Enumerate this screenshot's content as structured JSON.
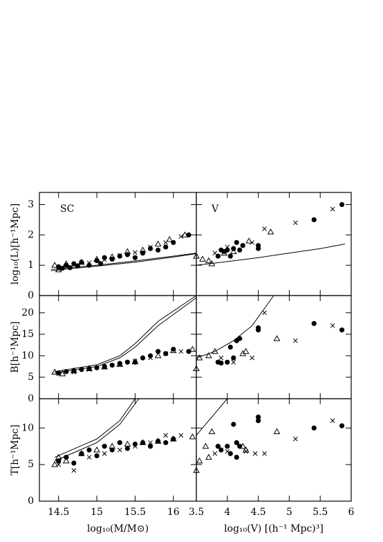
{
  "chart_data": [
    {
      "type": "scatter",
      "annotation": "SC",
      "ylabel": "log₁₀(L)[h⁻¹Mpc]",
      "xlim": [
        14.25,
        16.3
      ],
      "ylim": [
        0,
        3.4
      ],
      "yticks": [
        0,
        1,
        2,
        3
      ],
      "series": [
        {
          "marker": "line",
          "color": "#000",
          "x": [
            14.4,
            15.0,
            15.5,
            16.0,
            16.3
          ],
          "values": [
            0.82,
            0.97,
            1.1,
            1.27,
            1.38
          ]
        },
        {
          "marker": "line",
          "color": "#000",
          "x": [
            14.4,
            15.0,
            15.5,
            16.0,
            16.3
          ],
          "values": [
            0.86,
            1.0,
            1.14,
            1.3,
            1.4
          ]
        },
        {
          "marker": "circle",
          "color": "#000",
          "x": [
            14.5,
            14.55,
            14.6,
            14.65,
            14.7,
            14.75,
            14.8,
            14.9,
            15.0,
            15.05,
            15.1,
            15.2,
            15.3,
            15.4,
            15.5,
            15.6,
            15.7,
            15.8,
            15.9,
            16.0,
            16.2
          ],
          "values": [
            0.95,
            0.9,
            1.0,
            0.92,
            1.05,
            0.98,
            1.1,
            1.0,
            1.15,
            1.05,
            1.25,
            1.2,
            1.3,
            1.35,
            1.25,
            1.4,
            1.55,
            1.5,
            1.6,
            1.75,
            2.0
          ]
        },
        {
          "marker": "cross",
          "color": "#000",
          "x": [
            14.5,
            14.7,
            14.9,
            15.1,
            15.3,
            15.5,
            15.7,
            15.9,
            16.1
          ],
          "values": [
            0.88,
            1.02,
            1.08,
            1.18,
            1.32,
            1.42,
            1.6,
            1.75,
            1.95
          ]
        },
        {
          "marker": "triangle",
          "color": "#000",
          "x": [
            14.45,
            14.5,
            14.6,
            14.8,
            15.0,
            15.2,
            15.4,
            15.6,
            15.8,
            15.95,
            16.15
          ],
          "values": [
            1.0,
            0.85,
            1.05,
            1.1,
            1.2,
            1.28,
            1.45,
            1.5,
            1.7,
            1.85,
            2.0
          ]
        }
      ]
    },
    {
      "type": "scatter",
      "annotation": "V",
      "xlim": [
        3.5,
        6
      ],
      "ylim": [
        0,
        3.4
      ],
      "series": [
        {
          "marker": "line",
          "color": "#000",
          "x": [
            3.5,
            4.0,
            4.5,
            5.0,
            5.5,
            5.9
          ],
          "values": [
            1.0,
            1.12,
            1.25,
            1.4,
            1.55,
            1.7
          ]
        },
        {
          "marker": "circle",
          "color": "#000",
          "x": [
            3.85,
            3.9,
            3.95,
            4.0,
            4.05,
            4.1,
            4.15,
            4.2,
            4.25,
            4.5,
            4.5,
            5.4,
            5.85
          ],
          "values": [
            1.3,
            1.5,
            1.45,
            1.5,
            1.3,
            1.55,
            1.75,
            1.5,
            1.65,
            1.65,
            1.55,
            2.5,
            3.0
          ]
        },
        {
          "marker": "cross",
          "color": "#000",
          "x": [
            3.8,
            4.0,
            4.4,
            4.6,
            5.1,
            5.7
          ],
          "values": [
            1.4,
            1.6,
            1.75,
            2.2,
            2.4,
            2.85
          ]
        },
        {
          "marker": "triangle",
          "color": "#000",
          "x": [
            3.5,
            3.6,
            3.7,
            3.75,
            3.95,
            4.1,
            4.35,
            4.7
          ],
          "values": [
            1.3,
            1.2,
            1.15,
            1.05,
            1.4,
            1.45,
            1.8,
            2.1
          ]
        }
      ]
    },
    {
      "type": "scatter",
      "ylabel": "B[h⁻¹Mpc]",
      "xlim": [
        14.25,
        16.3
      ],
      "ylim": [
        0,
        24
      ],
      "yticks": [
        0,
        5,
        10,
        15,
        20
      ],
      "series": [
        {
          "marker": "line",
          "color": "#000",
          "x": [
            14.45,
            15.0,
            15.3,
            15.5,
            15.8,
            16.3
          ],
          "values": [
            6,
            7.5,
            9.5,
            12,
            17,
            23.5
          ]
        },
        {
          "marker": "line",
          "color": "#000",
          "x": [
            14.45,
            15.0,
            15.3,
            15.5,
            15.8,
            16.3
          ],
          "values": [
            6.3,
            7.9,
            10,
            12.8,
            18,
            24
          ]
        },
        {
          "marker": "circle",
          "color": "#000",
          "x": [
            14.5,
            14.6,
            14.7,
            14.8,
            14.9,
            15.0,
            15.1,
            15.2,
            15.3,
            15.4,
            15.5,
            15.6,
            15.7,
            15.8,
            15.9,
            16.0,
            16.2
          ],
          "values": [
            6,
            6.3,
            6.5,
            6.8,
            7,
            7.2,
            7.5,
            7.8,
            8.2,
            8.5,
            8.5,
            9.5,
            10,
            11,
            10.5,
            11.5,
            11
          ]
        },
        {
          "marker": "cross",
          "color": "#000",
          "x": [
            14.5,
            14.7,
            14.9,
            15.1,
            15.3,
            15.5,
            15.7,
            15.9,
            16.1
          ],
          "values": [
            5.8,
            6.2,
            6.8,
            7.3,
            8,
            8.8,
            9.5,
            10.5,
            11
          ]
        },
        {
          "marker": "triangle",
          "color": "#000",
          "x": [
            14.45,
            14.55,
            14.7,
            14.9,
            15.1,
            15.3,
            15.5,
            15.8,
            16.0,
            16.25
          ],
          "values": [
            6.2,
            5.8,
            6.5,
            7,
            7.4,
            8,
            8.6,
            10,
            11.2,
            11.5
          ]
        }
      ]
    },
    {
      "type": "scatter",
      "xlim": [
        3.5,
        6
      ],
      "ylim": [
        0,
        24
      ],
      "series": [
        {
          "marker": "line",
          "color": "#000",
          "x": [
            3.5,
            3.8,
            4.1,
            4.4,
            4.6,
            4.75
          ],
          "values": [
            9.5,
            11,
            13.5,
            17,
            21,
            24
          ]
        },
        {
          "marker": "circle",
          "color": "#000",
          "x": [
            3.85,
            3.9,
            4.0,
            4.05,
            4.1,
            4.15,
            4.2,
            4.5,
            4.5,
            5.4,
            5.85
          ],
          "values": [
            8.5,
            8.3,
            8.5,
            12,
            9.5,
            13.5,
            14,
            16,
            16.5,
            17.5,
            16
          ]
        },
        {
          "marker": "cross",
          "color": "#000",
          "x": [
            3.9,
            4.1,
            4.4,
            4.6,
            5.1,
            5.7
          ],
          "values": [
            9.5,
            8.5,
            9.5,
            20,
            13.5,
            17
          ]
        },
        {
          "marker": "triangle",
          "color": "#000",
          "x": [
            3.5,
            3.55,
            3.7,
            3.8,
            4.25,
            4.3,
            4.8
          ],
          "values": [
            7,
            9.5,
            10,
            11,
            10.5,
            11,
            14
          ]
        }
      ]
    },
    {
      "type": "scatter",
      "ylabel": "T[h⁻¹Mpc]",
      "xlabel": "log₁₀(M/M⊙)",
      "xlim": [
        14.25,
        16.3
      ],
      "ylim": [
        0,
        14
      ],
      "yticks": [
        0,
        5,
        10
      ],
      "xticks": [
        14.5,
        15,
        15.5,
        16
      ],
      "series": [
        {
          "marker": "line",
          "color": "#000",
          "x": [
            14.45,
            15.0,
            15.3,
            15.55
          ],
          "values": [
            5.5,
            8,
            10.5,
            14
          ]
        },
        {
          "marker": "line",
          "color": "#000",
          "x": [
            14.45,
            15.0,
            15.3,
            15.5
          ],
          "values": [
            6,
            8.5,
            11,
            14
          ]
        },
        {
          "marker": "circle",
          "color": "#000",
          "x": [
            14.5,
            14.6,
            14.7,
            14.8,
            14.9,
            15.0,
            15.1,
            15.2,
            15.3,
            15.4,
            15.5,
            15.6,
            15.7,
            15.8,
            15.9,
            16.0
          ],
          "values": [
            5.5,
            6,
            5.2,
            6.5,
            7,
            6.2,
            7.5,
            7,
            8,
            7.2,
            7.8,
            8,
            7.5,
            8.2,
            8,
            8.5
          ]
        },
        {
          "marker": "cross",
          "color": "#000",
          "x": [
            14.5,
            14.7,
            14.9,
            15.1,
            15.3,
            15.5,
            15.7,
            15.9,
            16.1
          ],
          "values": [
            5,
            4.2,
            6,
            6.5,
            7,
            7.5,
            8,
            9,
            9
          ]
        },
        {
          "marker": "triangle",
          "color": "#000",
          "x": [
            14.45,
            14.5,
            14.6,
            14.8,
            15.0,
            15.2,
            15.4,
            15.6,
            15.8,
            16.0,
            16.25
          ],
          "values": [
            5,
            6,
            5.5,
            6.5,
            7,
            7.5,
            7.8,
            8,
            8.2,
            8.5,
            8.8
          ]
        }
      ]
    },
    {
      "type": "scatter",
      "xlabel": "log₁₀(V)  [(h⁻¹ Mpc)³]",
      "xlim": [
        3.5,
        6
      ],
      "ylim": [
        0,
        14
      ],
      "xticks": [
        3.5,
        4,
        4.5,
        5,
        5.5,
        6
      ],
      "series": [
        {
          "marker": "line",
          "color": "#000",
          "x": [
            3.5,
            3.7,
            3.9,
            4.0
          ],
          "values": [
            9,
            11,
            13,
            14
          ]
        },
        {
          "marker": "circle",
          "color": "#000",
          "x": [
            3.85,
            3.9,
            4.0,
            4.05,
            4.1,
            4.15,
            4.15,
            4.2,
            4.5,
            4.5,
            5.4,
            5.85
          ],
          "values": [
            7.5,
            7,
            7.5,
            6.5,
            10.5,
            8,
            6,
            7.5,
            11.5,
            11,
            10,
            10.3
          ]
        },
        {
          "marker": "cross",
          "color": "#000",
          "x": [
            3.8,
            4.0,
            4.3,
            4.45,
            4.6,
            5.1,
            5.7
          ],
          "values": [
            6.5,
            6.8,
            6.8,
            6.5,
            6.5,
            8.5,
            11
          ]
        },
        {
          "marker": "triangle",
          "color": "#000",
          "x": [
            3.5,
            3.55,
            3.65,
            3.7,
            3.75,
            4.25,
            4.3,
            4.8
          ],
          "values": [
            4.2,
            5.5,
            7.5,
            6,
            9.5,
            7.5,
            7,
            9.5
          ]
        }
      ]
    }
  ]
}
